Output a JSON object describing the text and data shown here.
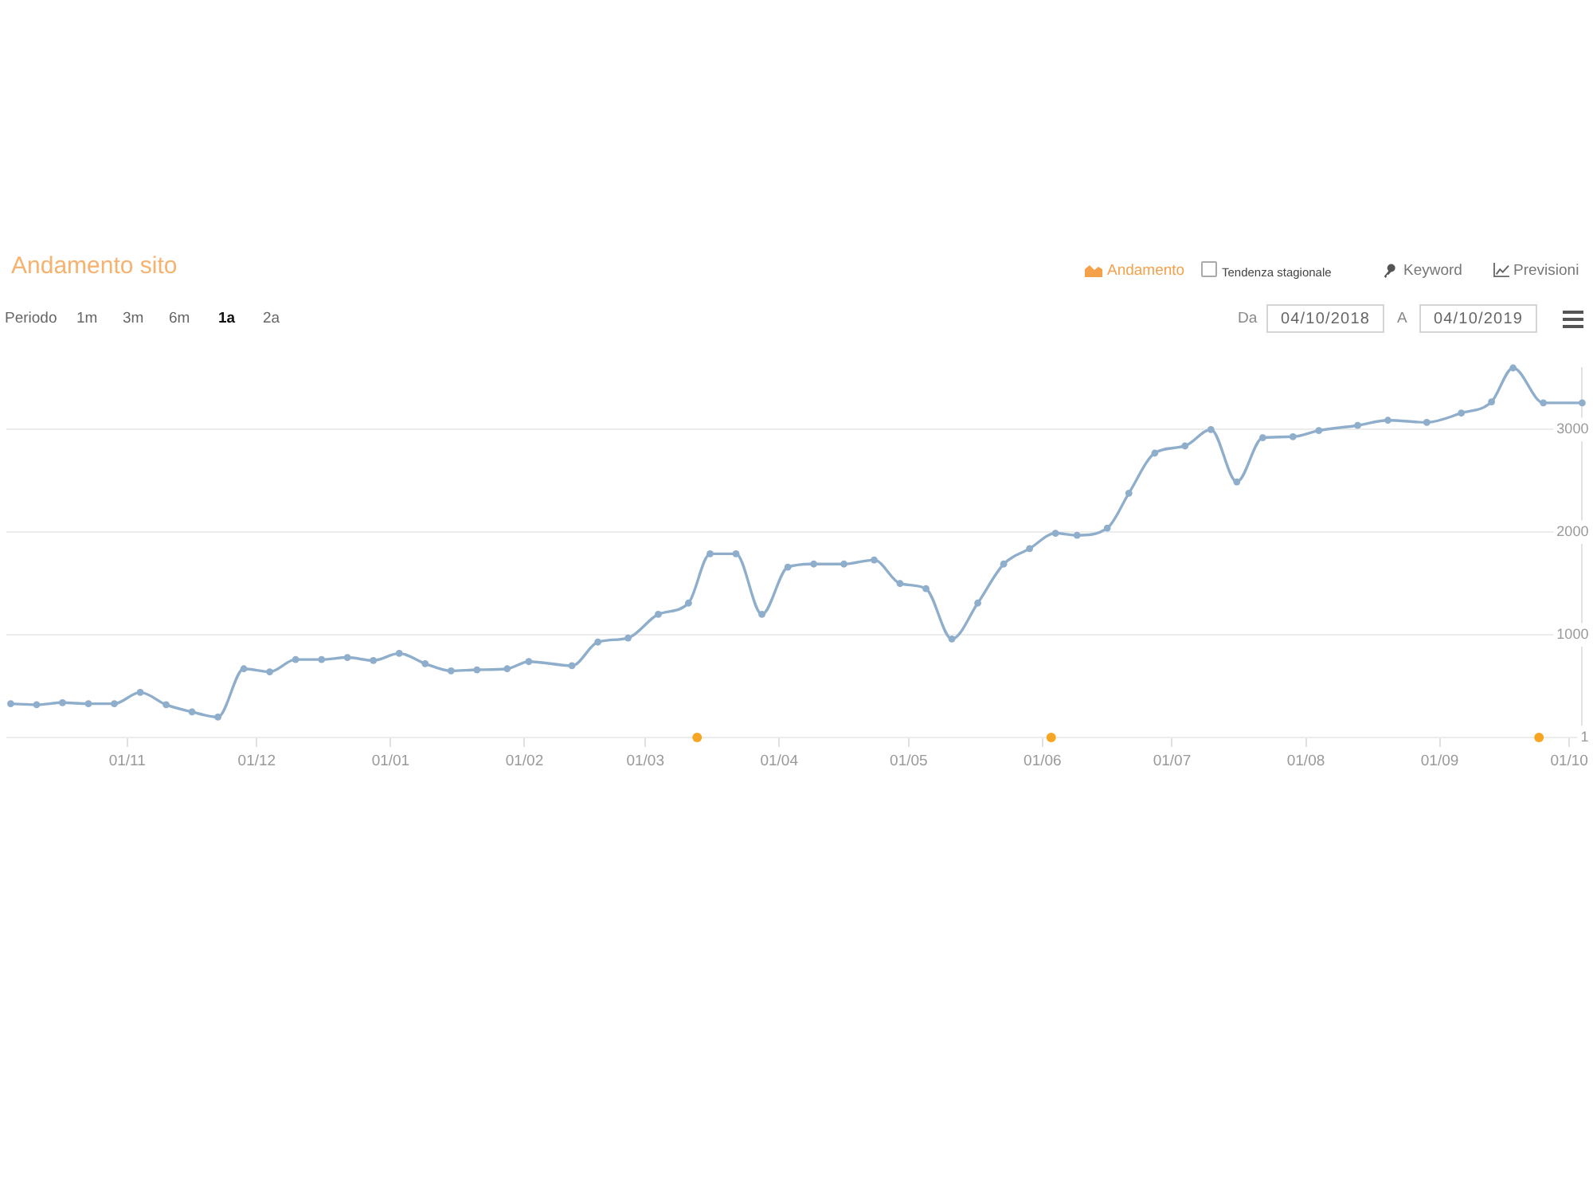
{
  "chart_data": {
    "type": "line",
    "title": "Andamento sito",
    "annotations": [
      "Periodo",
      "1m",
      "3m",
      "6m",
      "1a",
      "2a",
      "Andamento",
      "Tendenza stagionale",
      "Keyword",
      "Previsioni",
      "Da",
      "04/10/2018",
      "A",
      "04/10/2019"
    ],
    "x": [
      "2018-10-05",
      "2018-10-11",
      "2018-10-17",
      "2018-10-23",
      "2018-10-29",
      "2018-11-04",
      "2018-11-10",
      "2018-11-16",
      "2018-11-22",
      "2018-11-28",
      "2018-12-04",
      "2018-12-10",
      "2018-12-16",
      "2018-12-22",
      "2018-12-28",
      "2019-01-03",
      "2019-01-09",
      "2019-01-15",
      "2019-01-21",
      "2019-01-28",
      "2019-02-02",
      "2019-02-12",
      "2019-02-18",
      "2019-02-25",
      "2019-03-04",
      "2019-03-11",
      "2019-03-16",
      "2019-03-22",
      "2019-03-28",
      "2019-04-03",
      "2019-04-09",
      "2019-04-16",
      "2019-04-23",
      "2019-04-29",
      "2019-05-05",
      "2019-05-11",
      "2019-05-17",
      "2019-05-23",
      "2019-05-29",
      "2019-06-04",
      "2019-06-09",
      "2019-06-16",
      "2019-06-21",
      "2019-06-27",
      "2019-07-04",
      "2019-07-10",
      "2019-07-16",
      "2019-07-22",
      "2019-07-29",
      "2019-08-04",
      "2019-08-13",
      "2019-08-20",
      "2019-08-29",
      "2019-09-06",
      "2019-09-13",
      "2019-09-18",
      "2019-09-25",
      "2019-10-04"
    ],
    "series": [
      {
        "color": "#8eaecb",
        "values": [
          330,
          320,
          340,
          330,
          330,
          440,
          320,
          250,
          200,
          670,
          640,
          760,
          760,
          780,
          750,
          820,
          720,
          650,
          660,
          670,
          740,
          700,
          930,
          970,
          1200,
          1310,
          1790,
          1790,
          1200,
          1660,
          1690,
          1690,
          1730,
          1500,
          1450,
          960,
          1310,
          1690,
          1840,
          1990,
          1970,
          2040,
          2380,
          2770,
          2840,
          3000,
          2490,
          2920,
          2930,
          2990,
          3040,
          3090,
          3070,
          3160,
          3270,
          3600,
          3260,
          3260
        ]
      },
      {
        "type": "scatter",
        "color": "#f7a623",
        "x": [
          "2019-03-13",
          "2019-06-03",
          "2019-09-24"
        ],
        "values": [
          1,
          1,
          1
        ]
      }
    ],
    "xlim": [
      "2018-10-04",
      "2019-10-04"
    ],
    "xticks": [
      {
        "value": "2018-11-01",
        "label": "01/11"
      },
      {
        "value": "2018-12-01",
        "label": "01/12"
      },
      {
        "value": "2019-01-01",
        "label": "01/01"
      },
      {
        "value": "2019-02-01",
        "label": "01/02"
      },
      {
        "value": "2019-03-01",
        "label": "01/03"
      },
      {
        "value": "2019-04-01",
        "label": "01/04"
      },
      {
        "value": "2019-05-01",
        "label": "01/05"
      },
      {
        "value": "2019-06-01",
        "label": "01/06"
      },
      {
        "value": "2019-07-01",
        "label": "01/07"
      },
      {
        "value": "2019-08-01",
        "label": "01/08"
      },
      {
        "value": "2019-09-01",
        "label": "01/09"
      },
      {
        "value": "2019-10-01",
        "label": "01/10"
      }
    ],
    "ylim": [
      1,
      3600
    ],
    "yticks": [
      1,
      1000,
      2000,
      3000
    ],
    "grid": "y",
    "marker": "circle",
    "line_style": "solid"
  }
}
